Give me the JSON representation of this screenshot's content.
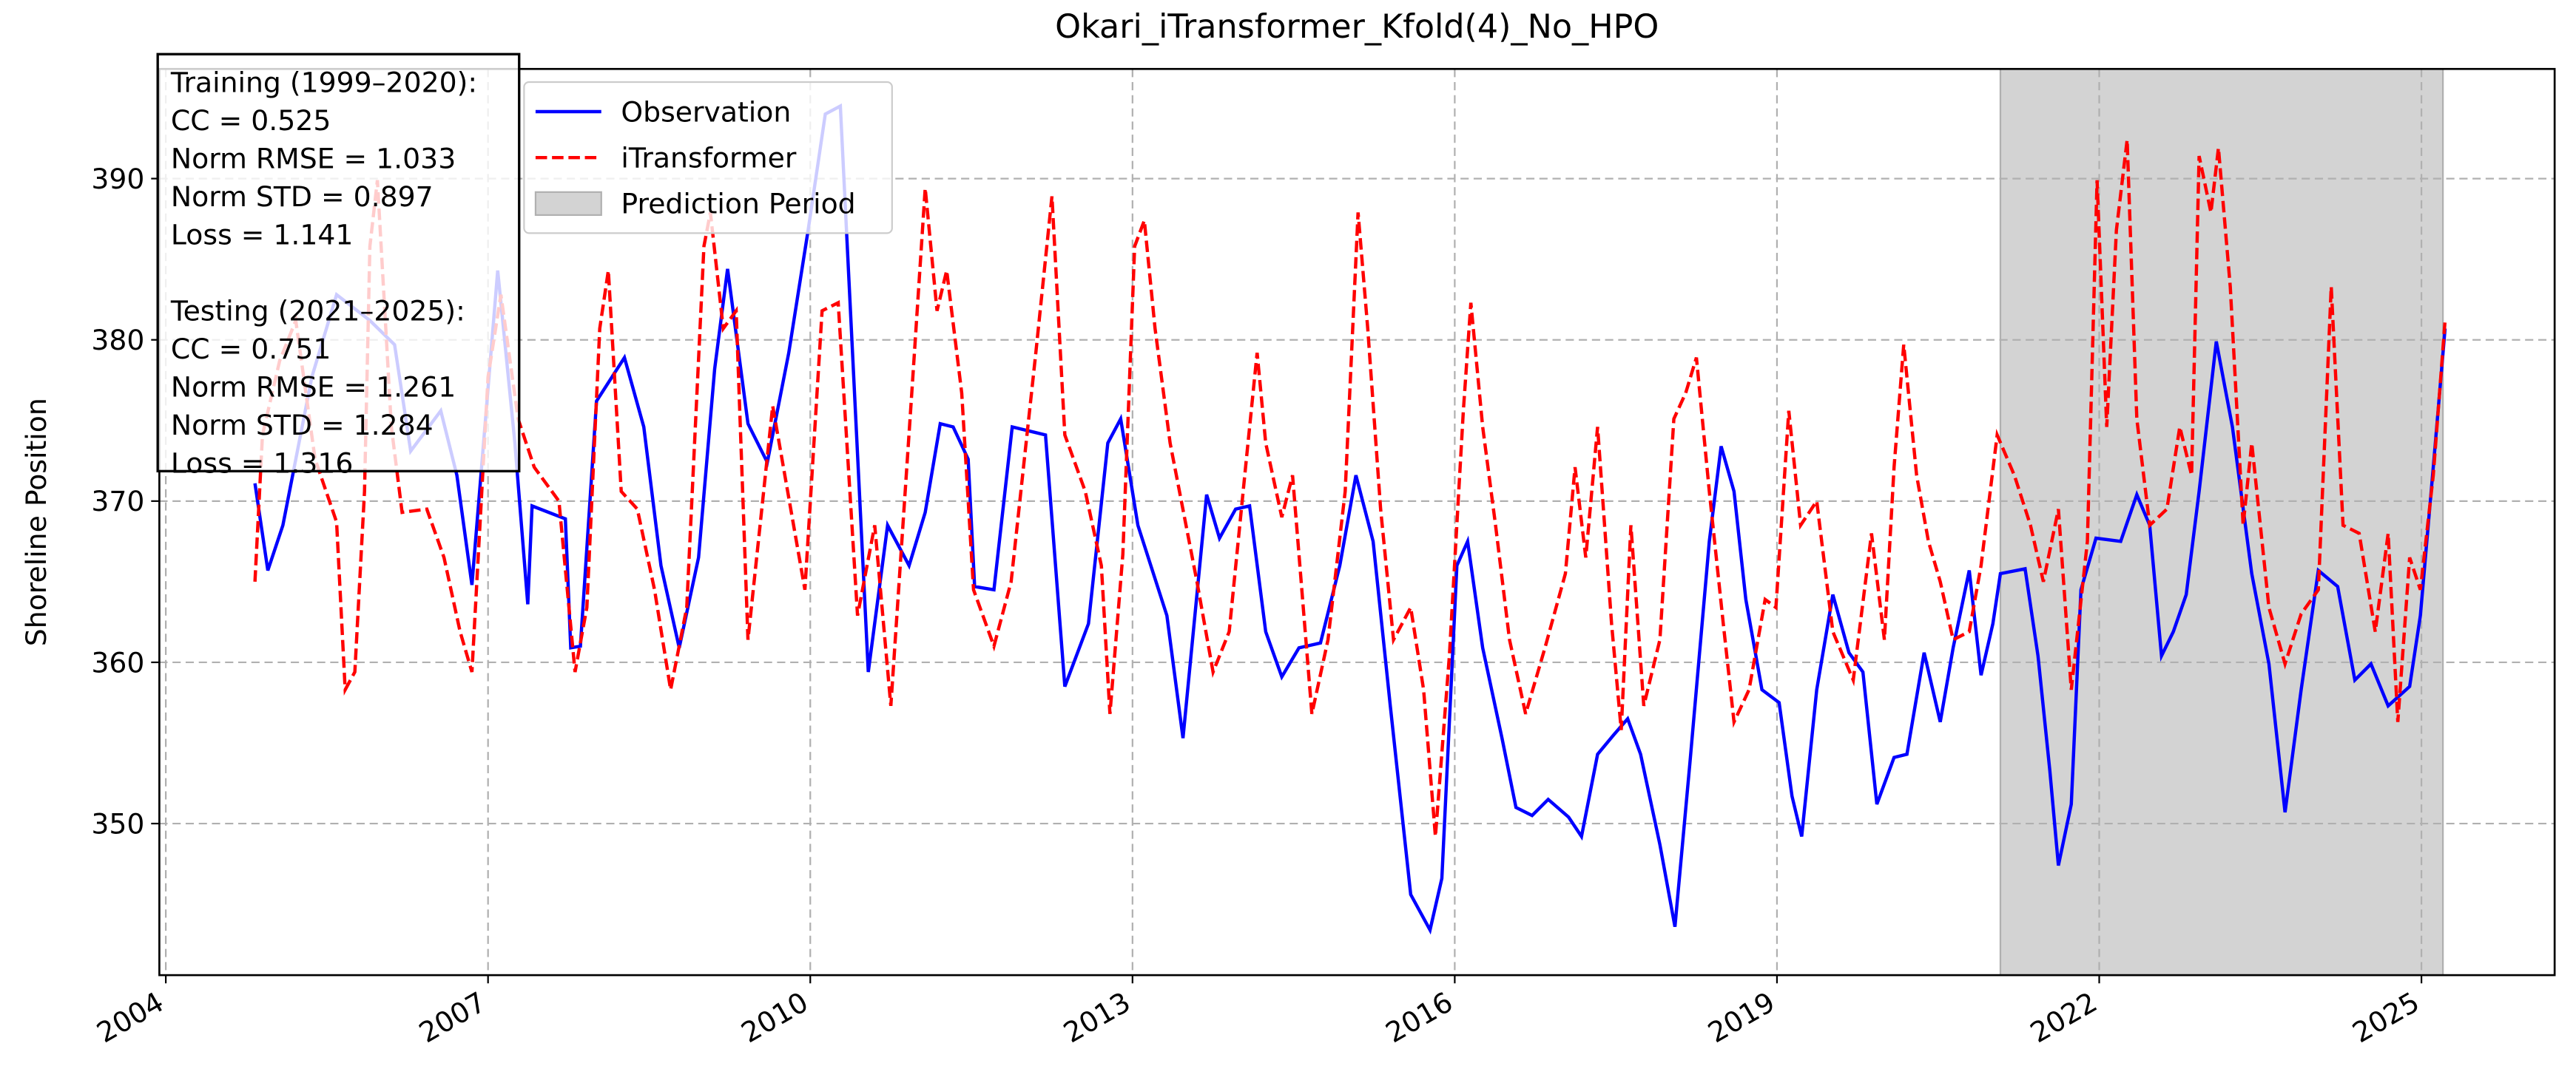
{
  "chart_data": {
    "type": "line",
    "title": "Okari_iTransformer_Kfold(4)_No_HPO",
    "y_label": "Shoreline Position",
    "xlim": [
      2003.94,
      2026.24
    ],
    "ylim": [
      340.6,
      396.8
    ],
    "xticks": [
      2004,
      2007,
      2010,
      2013,
      2016,
      2019,
      2022,
      2025
    ],
    "yticks": [
      350,
      360,
      370,
      380,
      390
    ],
    "grid": true,
    "legend": "upper left",
    "shaded_regions": [
      {
        "name": "Prediction Period",
        "color": "#d3d3d3",
        "x": [
          2021.08,
          2025.2
        ]
      }
    ],
    "annotation": [
      [
        "Training (1999–2020):",
        "CC = 0.525",
        "Norm RMSE = 1.033",
        "Norm STD = 0.897",
        "Loss = 1.141"
      ],
      [
        "Testing (2021–2025):",
        "CC = 0.751",
        "Norm RMSE = 1.261",
        "Norm STD = 1.284",
        "Loss = 1.316"
      ]
    ],
    "series": [
      {
        "name": "Observation",
        "color": "#0000ff",
        "style": "solid",
        "x": [
          2004.83,
          2004.95,
          2005.09,
          2005.36,
          2005.59,
          2005.9,
          2006.13,
          2006.28,
          2006.56,
          2006.71,
          2006.85,
          2007.09,
          2007.25,
          2007.37,
          2007.41,
          2007.72,
          2007.77,
          2007.86,
          2008.01,
          2008.27,
          2008.45,
          2008.61,
          2008.78,
          2008.96,
          2009.11,
          2009.23,
          2009.42,
          2009.6,
          2009.8,
          2009.98,
          2010.14,
          2010.28,
          2010.54,
          2010.72,
          2010.92,
          2011.07,
          2011.21,
          2011.33,
          2011.47,
          2011.53,
          2011.71,
          2011.88,
          2012.19,
          2012.37,
          2012.59,
          2012.77,
          2012.89,
          2013.05,
          2013.32,
          2013.47,
          2013.69,
          2013.81,
          2013.96,
          2014.09,
          2014.24,
          2014.39,
          2014.55,
          2014.75,
          2014.93,
          2015.08,
          2015.24,
          2015.4,
          2015.59,
          2015.77,
          2015.88,
          2016.02,
          2016.12,
          2016.26,
          2016.44,
          2016.57,
          2016.72,
          2016.87,
          2017.06,
          2017.18,
          2017.33,
          2017.48,
          2017.61,
          2017.73,
          2017.91,
          2018.05,
          2018.19,
          2018.37,
          2018.48,
          2018.6,
          2018.71,
          2018.86,
          2019.02,
          2019.14,
          2019.23,
          2019.37,
          2019.52,
          2019.67,
          2019.8,
          2019.93,
          2020.09,
          2020.21,
          2020.37,
          2020.52,
          2020.64,
          2020.79,
          2020.9,
          2021.01,
          2021.08,
          2021.31,
          2021.43,
          2021.54,
          2021.62,
          2021.74,
          2021.83,
          2021.97,
          2022.2,
          2022.35,
          2022.47,
          2022.58,
          2022.69,
          2022.81,
          2022.93,
          2023.09,
          2023.24,
          2023.42,
          2023.58,
          2023.73,
          2023.88,
          2024.04,
          2024.22,
          2024.38,
          2024.53,
          2024.69,
          2024.89,
          2024.99,
          2025.11,
          2025.22
        ],
        "values": [
          371.1,
          365.7,
          368.5,
          377.7,
          382.8,
          381.2,
          379.7,
          373.1,
          375.6,
          371.6,
          364.8,
          384.3,
          373.6,
          363.6,
          369.7,
          368.9,
          360.9,
          361.0,
          376.2,
          378.9,
          374.6,
          366.0,
          360.9,
          366.5,
          378.2,
          384.4,
          374.8,
          372.4,
          379.2,
          386.8,
          394.0,
          394.5,
          359.4,
          368.5,
          366.0,
          369.3,
          374.8,
          374.6,
          372.6,
          364.7,
          364.5,
          374.6,
          374.1,
          358.5,
          362.4,
          373.6,
          375.1,
          368.5,
          362.9,
          355.3,
          370.4,
          367.7,
          369.5,
          369.7,
          361.9,
          359.1,
          360.9,
          361.2,
          366.0,
          371.6,
          367.5,
          357.3,
          345.6,
          343.4,
          346.6,
          366.0,
          367.5,
          360.9,
          355.3,
          351.0,
          350.5,
          351.5,
          350.4,
          349.2,
          354.3,
          355.5,
          356.5,
          354.3,
          348.7,
          343.6,
          353.8,
          367.5,
          373.4,
          370.6,
          363.9,
          358.3,
          357.5,
          351.7,
          349.2,
          358.3,
          364.2,
          360.6,
          359.4,
          351.2,
          354.1,
          354.3,
          360.6,
          356.3,
          360.9,
          365.7,
          359.2,
          362.4,
          365.5,
          365.8,
          360.4,
          353.3,
          347.4,
          351.2,
          364.5,
          367.7,
          367.5,
          370.4,
          368.5,
          360.4,
          361.9,
          364.2,
          370.6,
          379.9,
          374.6,
          365.5,
          359.9,
          350.7,
          358.3,
          365.7,
          364.7,
          358.9,
          359.9,
          357.3,
          358.5,
          362.9,
          372.1,
          380.7
        ]
      },
      {
        "name": "iTransformer",
        "color": "#ff0000",
        "style": "dashed",
        "x": [
          2004.83,
          2004.9,
          2005.06,
          2005.21,
          2005.39,
          2005.59,
          2005.67,
          2005.76,
          2005.85,
          2005.9,
          2005.97,
          2006.1,
          2006.2,
          2006.43,
          2006.59,
          2006.74,
          2006.85,
          2007.0,
          2007.12,
          2007.28,
          2007.43,
          2007.66,
          2007.81,
          2007.92,
          2008.04,
          2008.12,
          2008.24,
          2008.39,
          2008.55,
          2008.7,
          2008.85,
          2009.01,
          2009.07,
          2009.19,
          2009.31,
          2009.42,
          2009.65,
          2009.95,
          2010.11,
          2010.26,
          2010.44,
          2010.6,
          2010.75,
          2010.95,
          2011.07,
          2011.18,
          2011.27,
          2011.41,
          2011.52,
          2011.71,
          2011.87,
          2012.1,
          2012.25,
          2012.37,
          2012.56,
          2012.71,
          2012.79,
          2012.91,
          2013.02,
          2013.11,
          2013.21,
          2013.35,
          2013.6,
          2013.75,
          2013.9,
          2014.06,
          2014.16,
          2014.24,
          2014.39,
          2014.49,
          2014.67,
          2014.82,
          2014.98,
          2015.1,
          2015.19,
          2015.31,
          2015.43,
          2015.59,
          2015.71,
          2015.82,
          2015.95,
          2016.08,
          2016.15,
          2016.26,
          2016.38,
          2016.51,
          2016.66,
          2016.84,
          2017.03,
          2017.12,
          2017.22,
          2017.33,
          2017.46,
          2017.55,
          2017.64,
          2017.76,
          2017.91,
          2018.04,
          2018.15,
          2018.25,
          2018.37,
          2018.5,
          2018.6,
          2018.74,
          2018.89,
          2018.99,
          2019.11,
          2019.22,
          2019.37,
          2019.52,
          2019.71,
          2019.88,
          2020.0,
          2020.09,
          2020.18,
          2020.3,
          2020.41,
          2020.52,
          2020.64,
          2020.79,
          2020.9,
          2021.05,
          2021.21,
          2021.36,
          2021.48,
          2021.62,
          2021.74,
          2021.89,
          2021.98,
          2022.07,
          2022.16,
          2022.26,
          2022.35,
          2022.47,
          2022.63,
          2022.75,
          2022.86,
          2022.93,
          2023.04,
          2023.11,
          2023.22,
          2023.34,
          2023.42,
          2023.58,
          2023.73,
          2023.88,
          2024.04,
          2024.16,
          2024.27,
          2024.42,
          2024.57,
          2024.69,
          2024.78,
          2024.89,
          2024.99,
          2025.11,
          2025.22
        ],
        "values": [
          365.0,
          374.1,
          378.7,
          381.2,
          372.6,
          368.7,
          358.3,
          359.4,
          370.6,
          385.8,
          389.9,
          374.6,
          369.3,
          369.5,
          366.5,
          361.9,
          359.4,
          377.7,
          382.8,
          375.1,
          372.1,
          370.0,
          359.4,
          363.4,
          380.7,
          384.3,
          370.6,
          369.5,
          364.5,
          358.3,
          363.4,
          385.8,
          387.9,
          380.7,
          381.8,
          361.4,
          375.9,
          364.5,
          381.8,
          382.3,
          362.9,
          368.5,
          357.3,
          377.2,
          389.4,
          381.8,
          384.3,
          376.7,
          364.5,
          361.0,
          365.0,
          379.2,
          388.9,
          374.1,
          370.6,
          366.0,
          356.8,
          366.7,
          385.8,
          387.4,
          380.7,
          373.6,
          365.0,
          359.4,
          361.9,
          372.6,
          379.2,
          373.6,
          369.0,
          371.6,
          356.8,
          361.4,
          370.6,
          387.9,
          380.7,
          369.5,
          361.4,
          363.4,
          358.3,
          349.2,
          360.4,
          375.6,
          382.3,
          374.6,
          368.5,
          361.4,
          356.8,
          360.9,
          365.5,
          372.1,
          366.5,
          374.6,
          362.4,
          355.8,
          368.5,
          357.3,
          361.4,
          375.1,
          376.7,
          378.9,
          370.6,
          362.4,
          356.3,
          358.3,
          363.9,
          363.4,
          375.6,
          368.5,
          370.0,
          361.9,
          358.9,
          368.0,
          361.4,
          372.1,
          379.7,
          371.6,
          367.5,
          365.0,
          361.4,
          361.9,
          366.0,
          374.1,
          371.6,
          368.5,
          365.0,
          369.5,
          358.3,
          367.5,
          389.9,
          374.6,
          386.8,
          392.4,
          375.1,
          368.5,
          369.5,
          374.6,
          371.6,
          391.4,
          387.9,
          391.9,
          383.3,
          368.5,
          373.6,
          363.4,
          359.9,
          363.0,
          364.5,
          383.3,
          368.5,
          368.0,
          361.9,
          368.0,
          356.3,
          366.5,
          364.5,
          371.6,
          381.2
        ]
      }
    ]
  }
}
